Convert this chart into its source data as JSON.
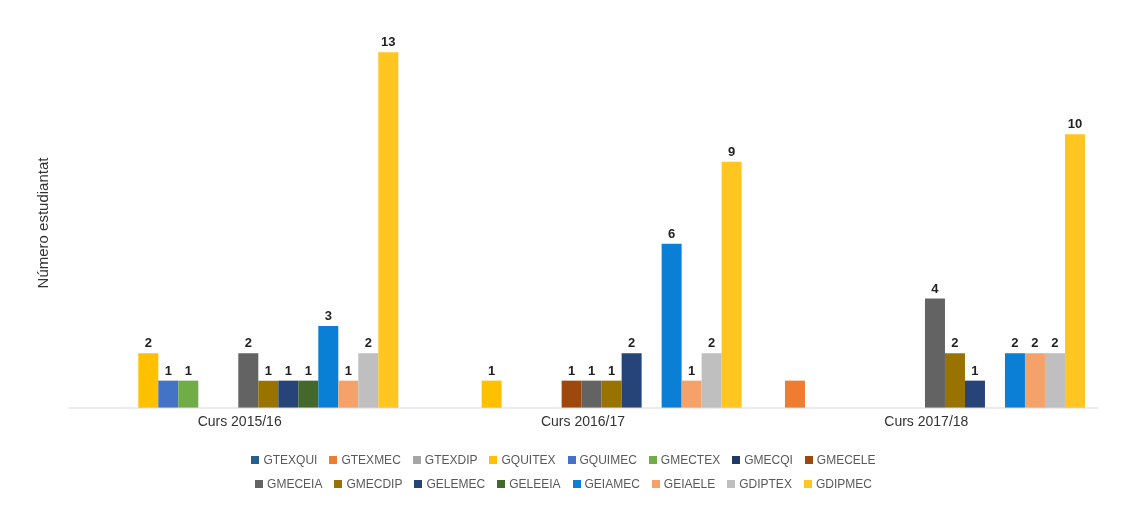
{
  "chart_data": {
    "type": "bar",
    "ylabel": "Número estudiantat",
    "categories": [
      "Curs 2015/16",
      "Curs 2016/17",
      "Curs 2017/18"
    ],
    "legend": "bottom",
    "grid": false,
    "series": [
      {
        "name": "GTEXQUI",
        "color": "#255e91",
        "values": [
          null,
          null,
          null
        ],
        "value_labels": [
          null,
          null,
          null
        ]
      },
      {
        "name": "GTEXMEC",
        "color": "#ed7d31",
        "values": [
          null,
          null,
          1
        ],
        "value_labels": [
          null,
          null,
          null
        ]
      },
      {
        "name": "GTEXDIP",
        "color": "#a5a5a5",
        "values": [
          null,
          null,
          null
        ],
        "value_labels": [
          null,
          null,
          null
        ]
      },
      {
        "name": "GQUITEX",
        "color": "#ffc000",
        "values": [
          2,
          1,
          null
        ],
        "value_labels": [
          "2",
          "1",
          null
        ]
      },
      {
        "name": "GQUIMEC",
        "color": "#4472c4",
        "values": [
          1,
          null,
          null
        ],
        "value_labels": [
          "1",
          null,
          null
        ]
      },
      {
        "name": "GMECTEX",
        "color": "#70ad47",
        "values": [
          1,
          null,
          null
        ],
        "value_labels": [
          "1",
          null,
          null
        ]
      },
      {
        "name": "GMECQI",
        "color": "#1f3864",
        "values": [
          null,
          null,
          null
        ],
        "value_labels": [
          null,
          null,
          null
        ]
      },
      {
        "name": "GMECELE",
        "color": "#9e480e",
        "values": [
          null,
          1,
          null
        ],
        "value_labels": [
          null,
          "1",
          null
        ]
      },
      {
        "name": "GMECEIA",
        "color": "#636363",
        "values": [
          2,
          1,
          4
        ],
        "value_labels": [
          "2",
          "1",
          "4"
        ]
      },
      {
        "name": "GMECDIP",
        "color": "#997300",
        "values": [
          1,
          1,
          2
        ],
        "value_labels": [
          "1",
          "1",
          "2"
        ]
      },
      {
        "name": "GELEMEC",
        "color": "#264478",
        "values": [
          1,
          2,
          1
        ],
        "value_labels": [
          "1",
          "2",
          "1"
        ]
      },
      {
        "name": "GELEEIA",
        "color": "#43682b",
        "values": [
          1,
          null,
          null
        ],
        "value_labels": [
          "1",
          null,
          null
        ]
      },
      {
        "name": "GEIAMEC",
        "color": "#0b7fd6",
        "values": [
          3,
          6,
          2
        ],
        "value_labels": [
          "3",
          "6",
          "2"
        ]
      },
      {
        "name": "GEIAELE",
        "color": "#f4a26a",
        "values": [
          1,
          1,
          2
        ],
        "value_labels": [
          "1",
          "1",
          "2"
        ]
      },
      {
        "name": "GDIPTEX",
        "color": "#bfbfbf",
        "values": [
          2,
          2,
          2
        ],
        "value_labels": [
          "2",
          "2",
          "2"
        ]
      },
      {
        "name": "GDIPMEC",
        "color": "#ffc521",
        "values": [
          13,
          9,
          10
        ],
        "value_labels": [
          "13",
          "9",
          "10"
        ]
      }
    ]
  }
}
